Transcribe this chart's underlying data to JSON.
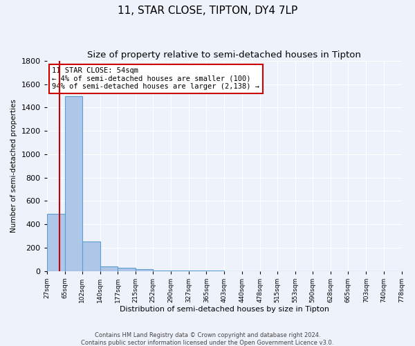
{
  "title": "11, STAR CLOSE, TIPTON, DY4 7LP",
  "subtitle": "Size of property relative to semi-detached houses in Tipton",
  "xlabel": "Distribution of semi-detached houses by size in Tipton",
  "ylabel": "Number of semi-detached properties",
  "footer_line1": "Contains HM Land Registry data © Crown copyright and database right 2024.",
  "footer_line2": "Contains public sector information licensed under the Open Government Licence v3.0.",
  "bin_edges": [
    27,
    65,
    102,
    140,
    177,
    215,
    252,
    290,
    327,
    365,
    403,
    440,
    478,
    515,
    553,
    590,
    628,
    665,
    703,
    740,
    778
  ],
  "bar_heights": [
    490,
    1500,
    250,
    40,
    25,
    15,
    5,
    2,
    1,
    1,
    0,
    0,
    0,
    0,
    0,
    0,
    0,
    0,
    0,
    0
  ],
  "bar_color": "#aec6e8",
  "bar_edge_color": "#5a9fd4",
  "property_size": 54,
  "property_line_color": "#cc0000",
  "annotation_text_line1": "11 STAR CLOSE: 54sqm",
  "annotation_text_line2": "← 4% of semi-detached houses are smaller (100)",
  "annotation_text_line3": "94% of semi-detached houses are larger (2,138) →",
  "annotation_box_color": "#cc0000",
  "annotation_box_fill": "#ffffff",
  "ylim": [
    0,
    1800
  ],
  "background_color": "#eef3fb",
  "grid_color": "#ffffff",
  "title_fontsize": 11,
  "subtitle_fontsize": 9.5
}
